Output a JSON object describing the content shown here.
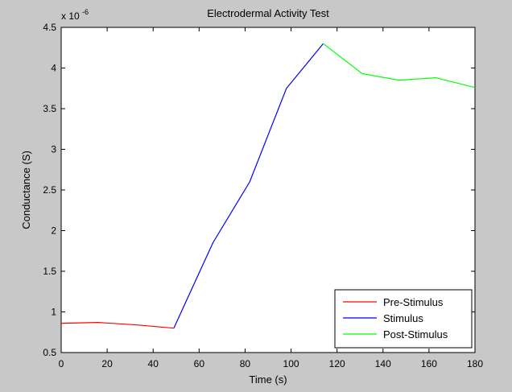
{
  "chart_data": {
    "type": "line",
    "title": "Electrodermal Activity Test",
    "xlabel": "Time (s)",
    "ylabel": "Conductance (S)",
    "y_exponent_label": "x 10",
    "y_exponent_power": "-6",
    "xlim": [
      0,
      180
    ],
    "ylim": [
      0.5,
      4.5
    ],
    "xticks": [
      "0",
      "20",
      "40",
      "60",
      "80",
      "100",
      "120",
      "140",
      "160",
      "180"
    ],
    "yticks": [
      "0.5",
      "1",
      "1.5",
      "2",
      "2.5",
      "3",
      "3.5",
      "4",
      "4.5"
    ],
    "grid": false,
    "legend_position": "bottom-right",
    "series": [
      {
        "name": "Pre-Stimulus",
        "color": "#ff0000",
        "x": [
          0,
          16,
          33,
          49
        ],
        "y": [
          0.86,
          0.87,
          0.84,
          0.8
        ]
      },
      {
        "name": "Stimulus",
        "color": "#0000ff",
        "x": [
          49,
          66,
          82,
          98,
          114
        ],
        "y": [
          0.8,
          1.85,
          2.6,
          3.75,
          4.3
        ]
      },
      {
        "name": "Post-Stimulus",
        "color": "#00ff00",
        "x": [
          114,
          131,
          147,
          163,
          180
        ],
        "y": [
          4.3,
          3.93,
          3.85,
          3.88,
          3.76
        ]
      }
    ]
  }
}
